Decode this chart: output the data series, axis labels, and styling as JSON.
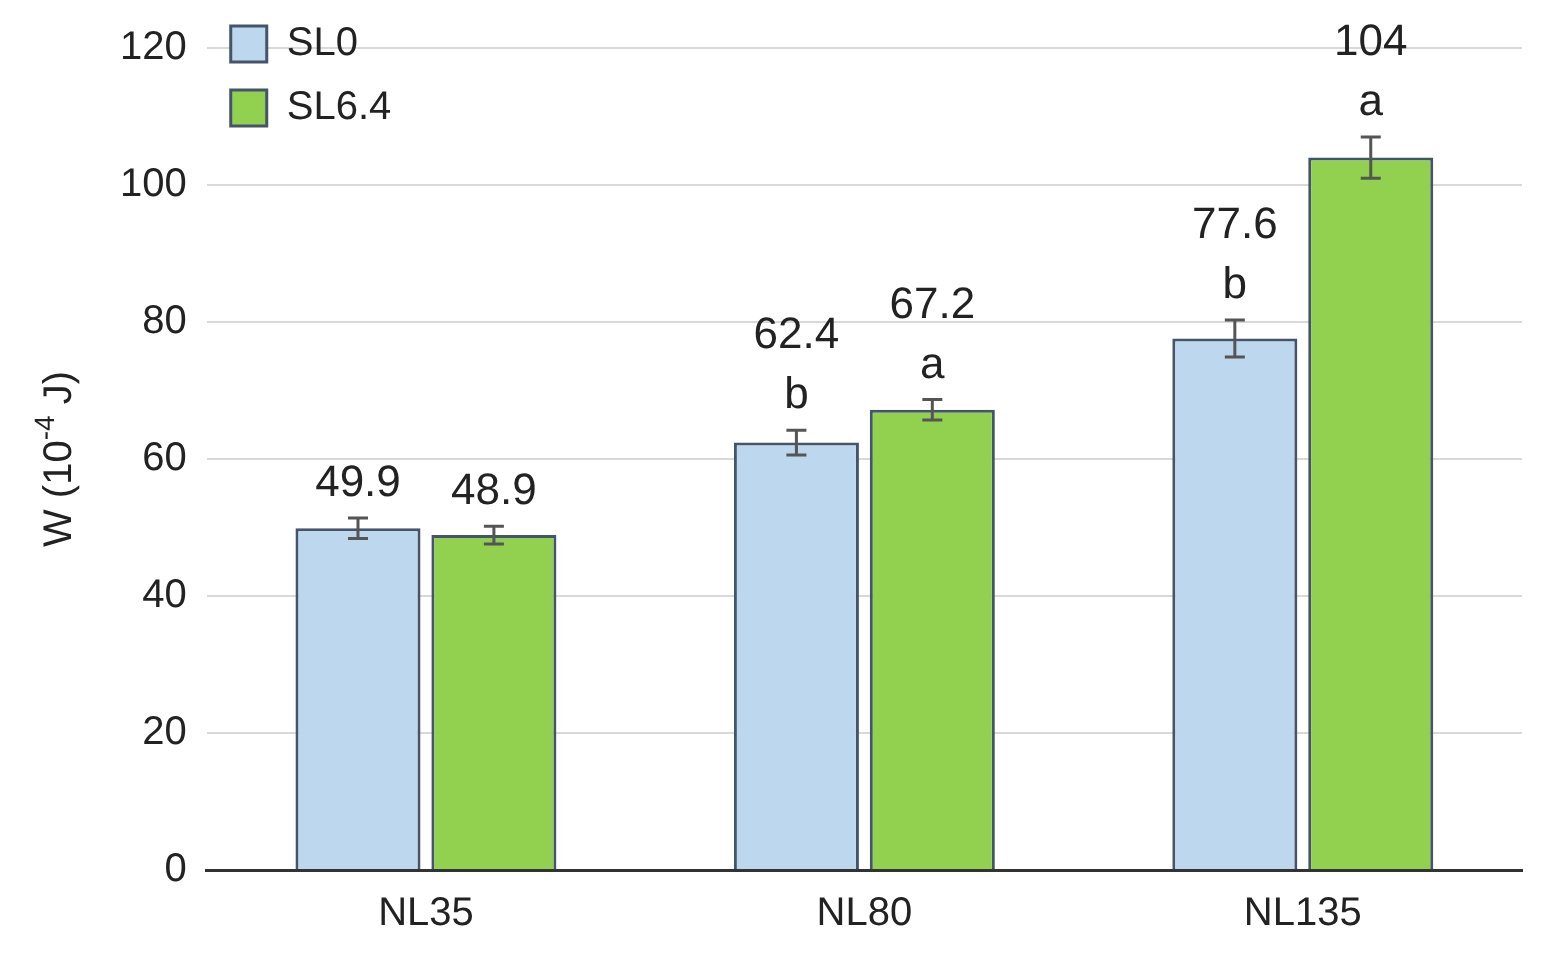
{
  "chart_data": {
    "type": "bar",
    "ylabel": "W (10$^{-4}$ J)",
    "categories": [
      "NL35",
      "NL80",
      "NL135"
    ],
    "series": [
      {
        "name": "SL0",
        "color": "#bdd7ee",
        "values": [
          49.9,
          62.4,
          77.6
        ],
        "errors": [
          1.5,
          1.8,
          2.7
        ],
        "value_labels": [
          "49.9",
          "62.4\nb",
          "77.6\nb"
        ]
      },
      {
        "name": "SL6.4",
        "color": "#92d050",
        "values": [
          48.9,
          67.2,
          104
        ],
        "errors": [
          1.3,
          1.5,
          3
        ],
        "value_labels": [
          "48.9",
          "67.2\na",
          "104\na"
        ]
      }
    ],
    "ylim": [
      0,
      120
    ],
    "yticks": [
      0,
      20,
      40,
      60,
      80,
      100,
      120
    ],
    "grid": "y",
    "legend": "top left"
  }
}
